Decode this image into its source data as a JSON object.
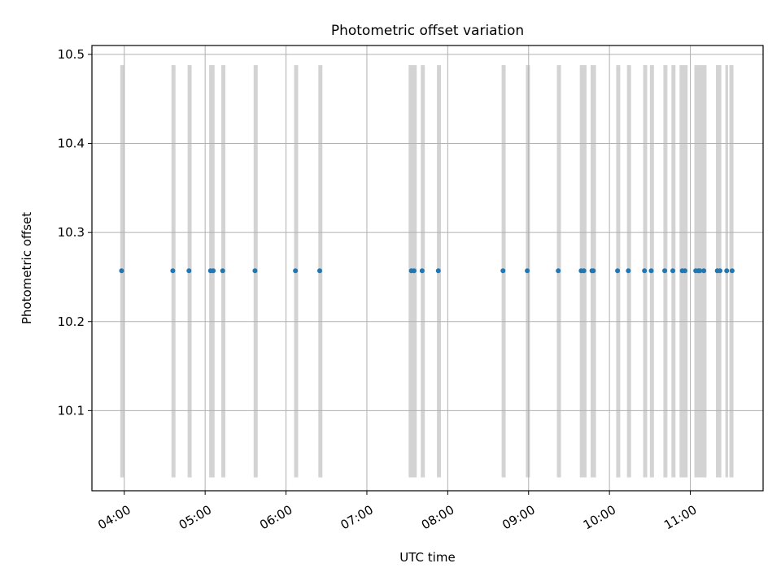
{
  "chart_data": {
    "type": "scatter",
    "title": "Photometric offset variation",
    "xlabel": "UTC time",
    "ylabel": "Photometric offset",
    "x_tick_labels": [
      "04:00",
      "05:00",
      "06:00",
      "07:00",
      "08:00",
      "09:00",
      "10:00",
      "11:00"
    ],
    "x_ticks_hours": [
      4,
      5,
      6,
      7,
      8,
      9,
      10,
      11
    ],
    "y_tick_labels": [
      "10.1",
      "10.2",
      "10.3",
      "10.4",
      "10.5"
    ],
    "y_ticks": [
      10.1,
      10.2,
      10.3,
      10.4,
      10.5
    ],
    "xlim": [
      "03:36",
      "11:54"
    ],
    "ylim": [
      10.01,
      10.51
    ],
    "grid": true,
    "interval_range": [
      10.025,
      10.488
    ],
    "points": [
      {
        "x": "03:58",
        "y": 10.257
      },
      {
        "x": "04:36",
        "y": 10.257
      },
      {
        "x": "04:48",
        "y": 10.257
      },
      {
        "x": "05:04",
        "y": 10.257
      },
      {
        "x": "05:06",
        "y": 10.257
      },
      {
        "x": "05:13",
        "y": 10.257
      },
      {
        "x": "05:37",
        "y": 10.257
      },
      {
        "x": "06:07",
        "y": 10.257
      },
      {
        "x": "06:25",
        "y": 10.257
      },
      {
        "x": "07:33",
        "y": 10.257
      },
      {
        "x": "07:35",
        "y": 10.257
      },
      {
        "x": "07:41",
        "y": 10.257
      },
      {
        "x": "07:53",
        "y": 10.257
      },
      {
        "x": "08:41",
        "y": 10.257
      },
      {
        "x": "08:59",
        "y": 10.257
      },
      {
        "x": "09:22",
        "y": 10.257
      },
      {
        "x": "09:39",
        "y": 10.257
      },
      {
        "x": "09:41",
        "y": 10.257
      },
      {
        "x": "09:47",
        "y": 10.257
      },
      {
        "x": "09:48",
        "y": 10.257
      },
      {
        "x": "10:06",
        "y": 10.257
      },
      {
        "x": "10:14",
        "y": 10.257
      },
      {
        "x": "10:26",
        "y": 10.257
      },
      {
        "x": "10:31",
        "y": 10.257
      },
      {
        "x": "10:41",
        "y": 10.257
      },
      {
        "x": "10:47",
        "y": 10.257
      },
      {
        "x": "10:54",
        "y": 10.257
      },
      {
        "x": "10:56",
        "y": 10.257
      },
      {
        "x": "11:04",
        "y": 10.257
      },
      {
        "x": "11:06",
        "y": 10.257
      },
      {
        "x": "11:07",
        "y": 10.257
      },
      {
        "x": "11:10",
        "y": 10.257
      },
      {
        "x": "11:20",
        "y": 10.257
      },
      {
        "x": "11:22",
        "y": 10.257
      },
      {
        "x": "11:27",
        "y": 10.257
      },
      {
        "x": "11:31",
        "y": 10.257
      }
    ],
    "intervals": [
      {
        "start": "03:57",
        "end": "04:00"
      },
      {
        "start": "04:35",
        "end": "04:38"
      },
      {
        "start": "04:47",
        "end": "04:50"
      },
      {
        "start": "05:03",
        "end": "05:07"
      },
      {
        "start": "05:12",
        "end": "05:15"
      },
      {
        "start": "05:36",
        "end": "05:39"
      },
      {
        "start": "06:06",
        "end": "06:09"
      },
      {
        "start": "06:24",
        "end": "06:27"
      },
      {
        "start": "07:31",
        "end": "07:37"
      },
      {
        "start": "07:40",
        "end": "07:43"
      },
      {
        "start": "07:52",
        "end": "07:55"
      },
      {
        "start": "08:40",
        "end": "08:43"
      },
      {
        "start": "08:58",
        "end": "09:01"
      },
      {
        "start": "09:21",
        "end": "09:24"
      },
      {
        "start": "09:38",
        "end": "09:43"
      },
      {
        "start": "09:46",
        "end": "09:50"
      },
      {
        "start": "10:05",
        "end": "10:08"
      },
      {
        "start": "10:13",
        "end": "10:16"
      },
      {
        "start": "10:25",
        "end": "10:28"
      },
      {
        "start": "10:30",
        "end": "10:33"
      },
      {
        "start": "10:40",
        "end": "10:43"
      },
      {
        "start": "10:46",
        "end": "10:49"
      },
      {
        "start": "10:52",
        "end": "10:58"
      },
      {
        "start": "11:03",
        "end": "11:12"
      },
      {
        "start": "11:19",
        "end": "11:23"
      },
      {
        "start": "11:26",
        "end": "11:28"
      },
      {
        "start": "11:29",
        "end": "11:32"
      }
    ],
    "colors": {
      "points": "#1f77b4",
      "intervals": "#d3d3d3",
      "grid": "#b0b0b0",
      "axes": "#000000"
    }
  }
}
